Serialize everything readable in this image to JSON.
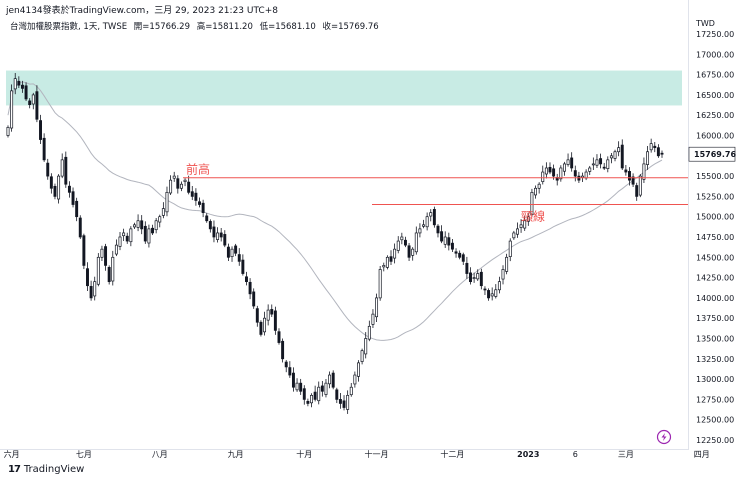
{
  "header": {
    "caption": "jen4134發表於TradingView.com，三月 29, 2023 21:23 UTC+8",
    "symbol": "台灣加權股票指數, 1天, TWSE",
    "open": "開=15766.29",
    "high": "高=15811.20",
    "low": "低=15681.10",
    "close": "收=15769.76"
  },
  "footer": {
    "brand": "TradingView",
    "logo": "17"
  },
  "colors": {
    "up": "#ffffff",
    "down": "#131722",
    "ma": "#b2b5be",
    "zone": "#c8ebe4",
    "line": "#ef5350",
    "axis_text": "#131722",
    "price_tag": "#131722",
    "purple": "#9c27b0"
  },
  "icons": {
    "lightning": "lightning-icon"
  },
  "chart_data": {
    "type": "candlestick",
    "currency": "TWD",
    "ylim": [
      12250,
      17300
    ],
    "y_ticks": [
      "17250.00",
      "17000.00",
      "16750.00",
      "16500.00",
      "16250.00",
      "16000.00",
      "15750.00",
      "15500.00",
      "15250.00",
      "15000.00",
      "14750.00",
      "14500.00",
      "14250.00",
      "14000.00",
      "13750.00",
      "13500.00",
      "13250.00",
      "13000.00",
      "12750.00",
      "12500.00",
      "12250.00"
    ],
    "last_price": "15769.76",
    "x_ticks": [
      {
        "label": "六月",
        "bar": 1
      },
      {
        "label": "七月",
        "bar": 21
      },
      {
        "label": "八月",
        "bar": 42
      },
      {
        "label": "九月",
        "bar": 63
      },
      {
        "label": "十月",
        "bar": 82
      },
      {
        "label": "十一月",
        "bar": 102
      },
      {
        "label": "十二月",
        "bar": 123
      },
      {
        "label": "2023",
        "bar": 144
      },
      {
        "label": "6",
        "bar": 157
      },
      {
        "label": "三月",
        "bar": 171
      },
      {
        "label": "四月",
        "bar": 192
      }
    ],
    "resistance_zone": [
      16370,
      16800
    ],
    "lines": [
      {
        "label": "前高",
        "price": 15480,
        "from_bar": 51
      },
      {
        "label": "頸線",
        "price": 15150,
        "from_bar": 105
      }
    ],
    "closes": [
      16100,
      16550,
      16700,
      16620,
      16580,
      16450,
      16380,
      16500,
      16200,
      15950,
      15700,
      15500,
      15350,
      15250,
      15500,
      15700,
      15400,
      15300,
      15150,
      15000,
      14750,
      14400,
      14150,
      14000,
      14200,
      14500,
      14600,
      14400,
      14200,
      14500,
      14650,
      14750,
      14800,
      14700,
      14850,
      14900,
      14950,
      14850,
      14700,
      14850,
      14800,
      14950,
      15000,
      15100,
      15300,
      15450,
      15500,
      15350,
      15400,
      15450,
      15300,
      15250,
      15200,
      15150,
      15050,
      14950,
      14850,
      14750,
      14800,
      14750,
      14650,
      14500,
      14600,
      14550,
      14450,
      14300,
      14200,
      14050,
      13900,
      13700,
      13550,
      13750,
      13850,
      13800,
      13600,
      13450,
      13250,
      13150,
      13050,
      12900,
      12950,
      12850,
      12750,
      12700,
      12800,
      12750,
      12900,
      12850,
      12950,
      13050,
      12900,
      12750,
      12700,
      12650,
      12800,
      12900,
      13050,
      13200,
      13350,
      13500,
      13650,
      13800,
      14000,
      14350,
      14400,
      14500,
      14450,
      14600,
      14700,
      14750,
      14650,
      14500,
      14600,
      14800,
      14850,
      14900,
      15000,
      15050,
      14900,
      14800,
      14700,
      14750,
      14650,
      14600,
      14550,
      14500,
      14450,
      14300,
      14200,
      14250,
      14300,
      14150,
      14100,
      14000,
      14050,
      14100,
      14200,
      14350,
      14500,
      14700,
      14800,
      14850,
      14900,
      14950,
      15000,
      15300,
      15350,
      15400,
      15550,
      15600,
      15550,
      15500,
      15450,
      15600,
      15650,
      15700,
      15600,
      15500,
      15450,
      15500,
      15550,
      15600,
      15650,
      15700,
      15650,
      15600,
      15700,
      15750,
      15800,
      15850,
      15600,
      15550,
      15450,
      15400,
      15250,
      15500,
      15650,
      15800,
      15900,
      15850,
      15750,
      15770
    ],
    "ma_label": ""
  }
}
